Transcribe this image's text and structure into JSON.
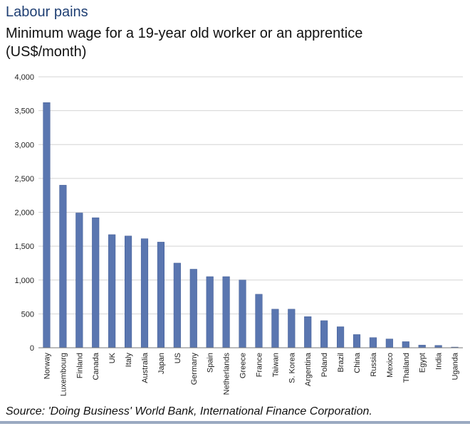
{
  "header": {
    "title": "Labour pains",
    "subtitle": "Minimum wage for a 19-year old worker or an apprentice (US$/month)"
  },
  "footer": {
    "source": "Source: 'Doing Business'  World Bank, International Finance Corporation."
  },
  "colors": {
    "bar": "#5a76b0",
    "bar_edge": "#3f5a93",
    "gridline": "#d4d4d4",
    "title": "#1f3f73",
    "rule": "#9aa9c1"
  },
  "chart_data": {
    "type": "bar",
    "title": "Labour pains",
    "subtitle": "Minimum wage for a 19-year old worker or an apprentice (US$/month)",
    "xlabel": "",
    "ylabel": "",
    "ylim": [
      0,
      4000
    ],
    "yticks": [
      0,
      500,
      1000,
      1500,
      2000,
      2500,
      3000,
      3500,
      4000
    ],
    "ytick_labels": [
      "0",
      "500",
      "1,000",
      "1,500",
      "2,000",
      "2,500",
      "3,000",
      "3,500",
      "4,000"
    ],
    "grid": true,
    "legend": "none",
    "categories": [
      "Norway",
      "Luxembourg",
      "Finland",
      "Canada",
      "UK",
      "Italy",
      "Australia",
      "Japan",
      "US",
      "Germany",
      "Spain",
      "Netherlands",
      "Greece",
      "France",
      "Taiwan",
      "S. Korea",
      "Argentina",
      "Poland",
      "Brazil",
      "China",
      "Russia",
      "Mexico",
      "Thailand",
      "Egypt",
      "India",
      "Uganda"
    ],
    "values": [
      3620,
      2400,
      1990,
      1920,
      1670,
      1650,
      1610,
      1560,
      1250,
      1160,
      1050,
      1050,
      1000,
      790,
      570,
      570,
      460,
      400,
      310,
      195,
      150,
      130,
      90,
      40,
      35,
      10
    ]
  }
}
